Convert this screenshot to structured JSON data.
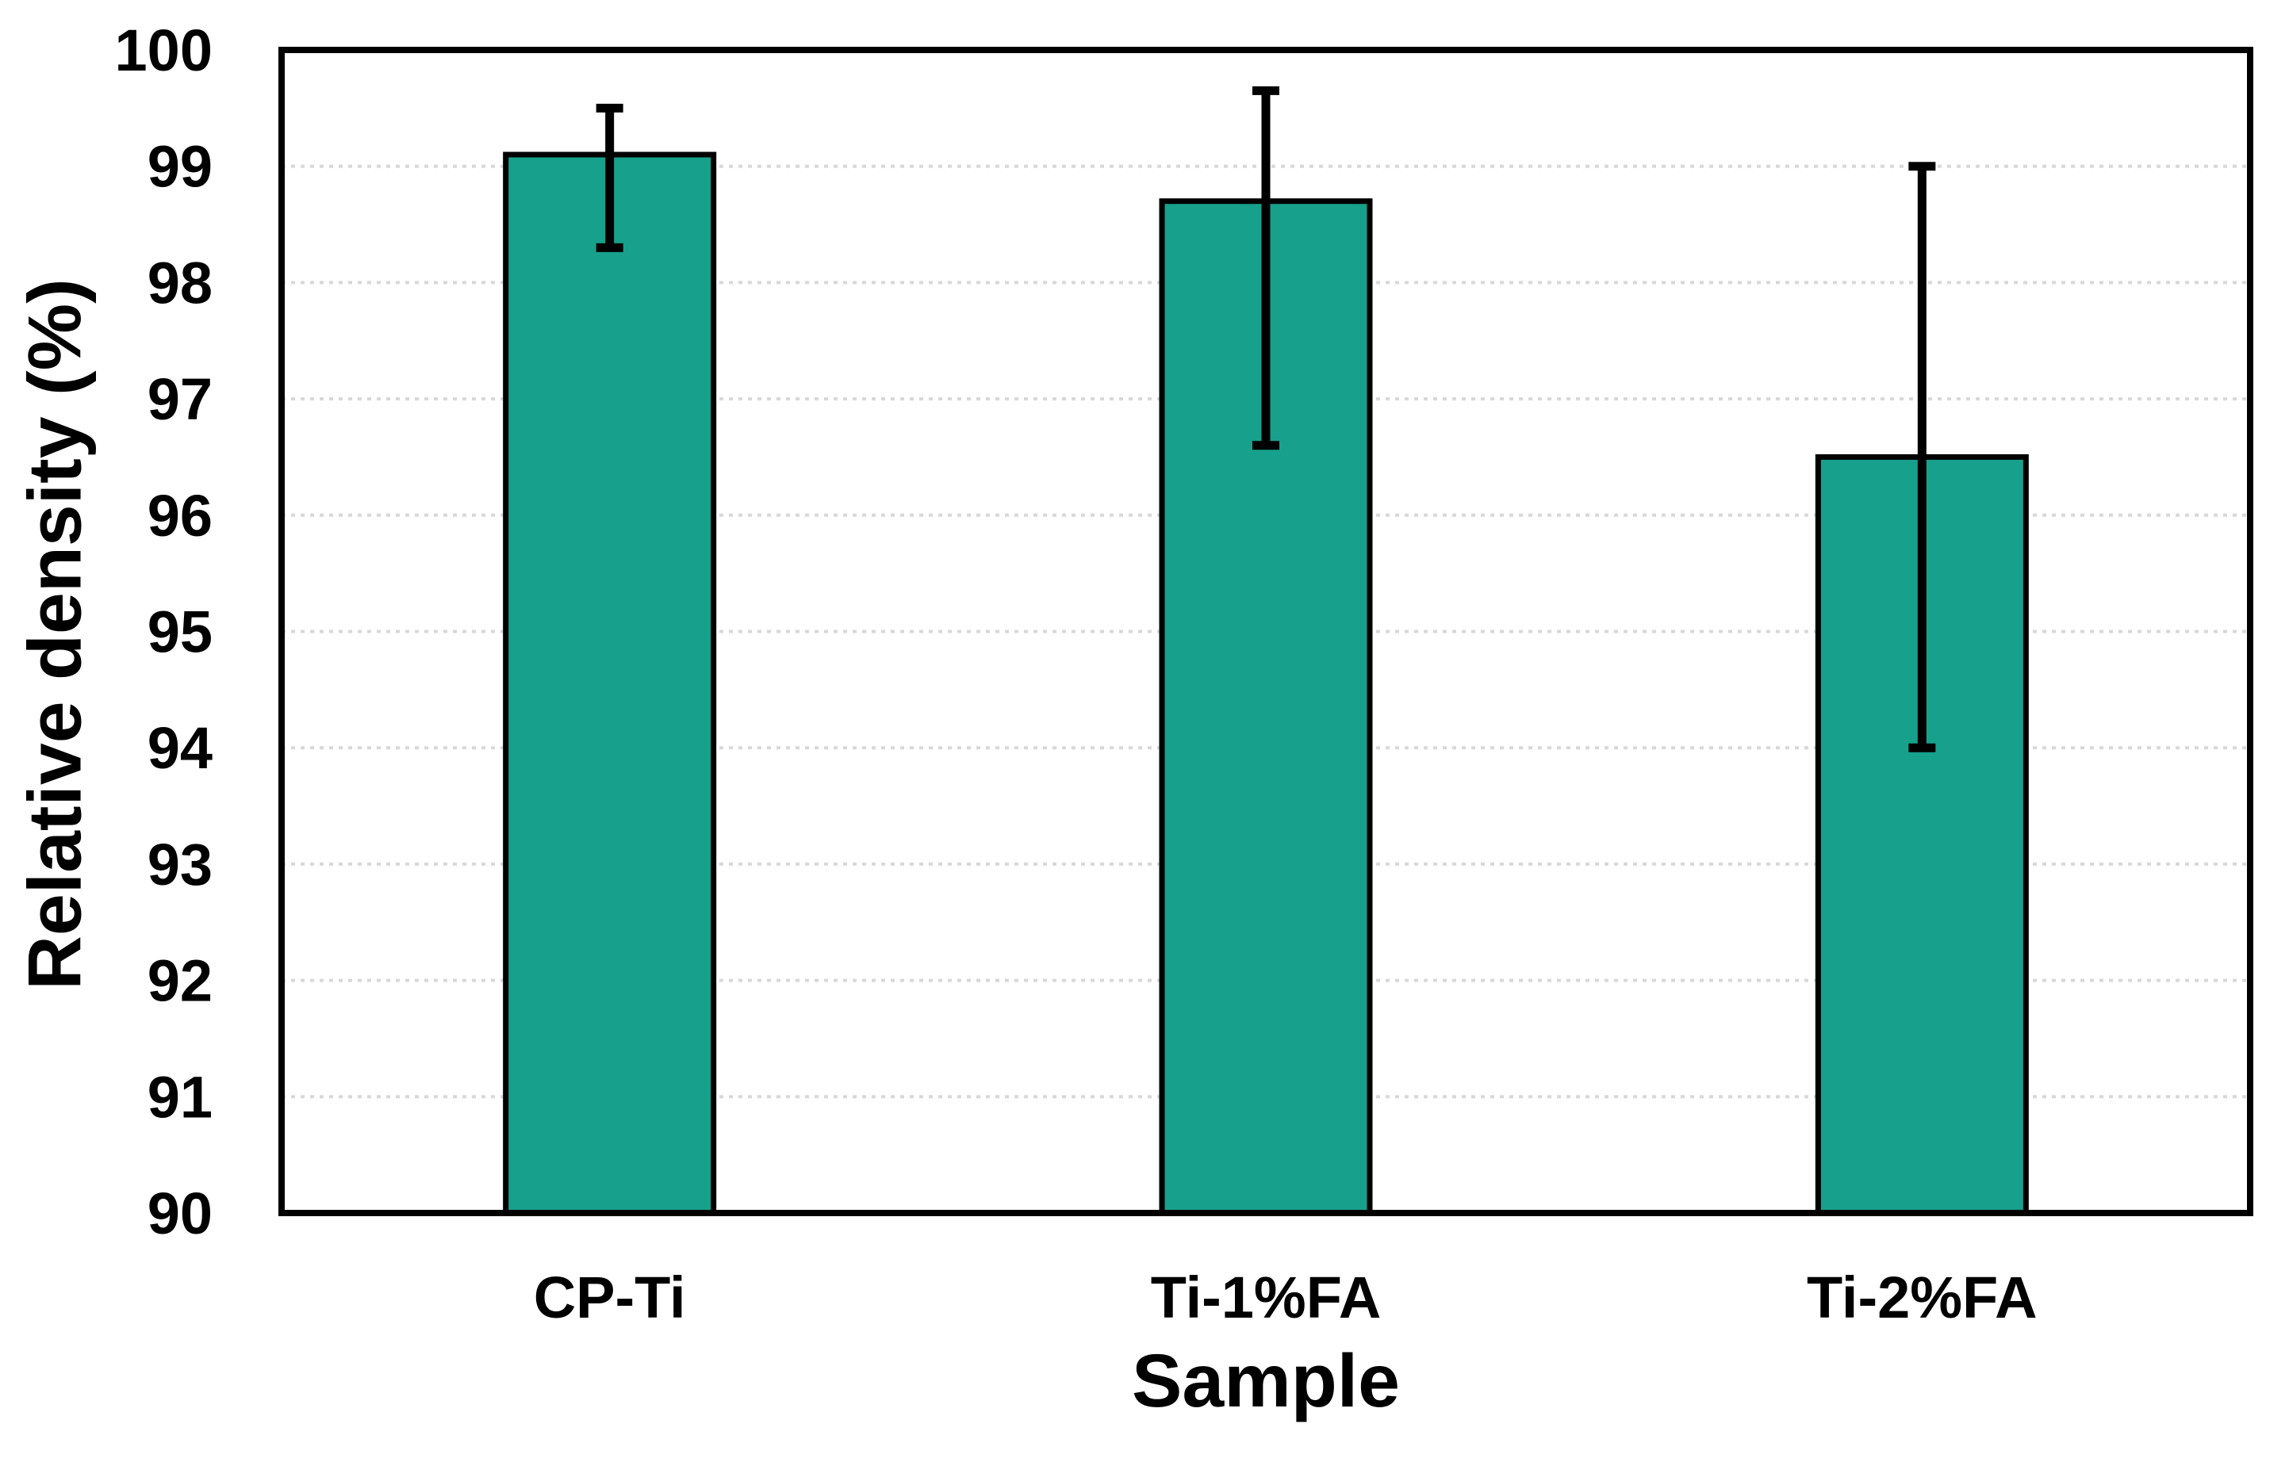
{
  "figure": {
    "background": "#FFFFFF"
  },
  "chart_data": {
    "type": "bar",
    "title": "",
    "xlabel": "Sample",
    "ylabel": "Relative density (%)",
    "categories": [
      "CP-Ti",
      "Ti-1%FA",
      "Ti-2%FA"
    ],
    "series": [
      {
        "name": "Relative density",
        "values": [
          99.1,
          98.7,
          96.5
        ],
        "error_plus": [
          0.4,
          0.95,
          2.5
        ],
        "error_minus": [
          0.8,
          2.1,
          2.5
        ]
      }
    ],
    "ylim": [
      90,
      100
    ],
    "yticks": [
      90,
      91,
      92,
      93,
      94,
      95,
      96,
      97,
      98,
      99,
      100
    ],
    "grid": "horizontal-dotted",
    "legend": "none",
    "colors": {
      "bar_fill": "#17A08C",
      "bar_stroke": "#000000",
      "axis": "#000000",
      "gridline": "#D8D8D8",
      "text": "#000000",
      "error_bar": "#000000"
    }
  }
}
